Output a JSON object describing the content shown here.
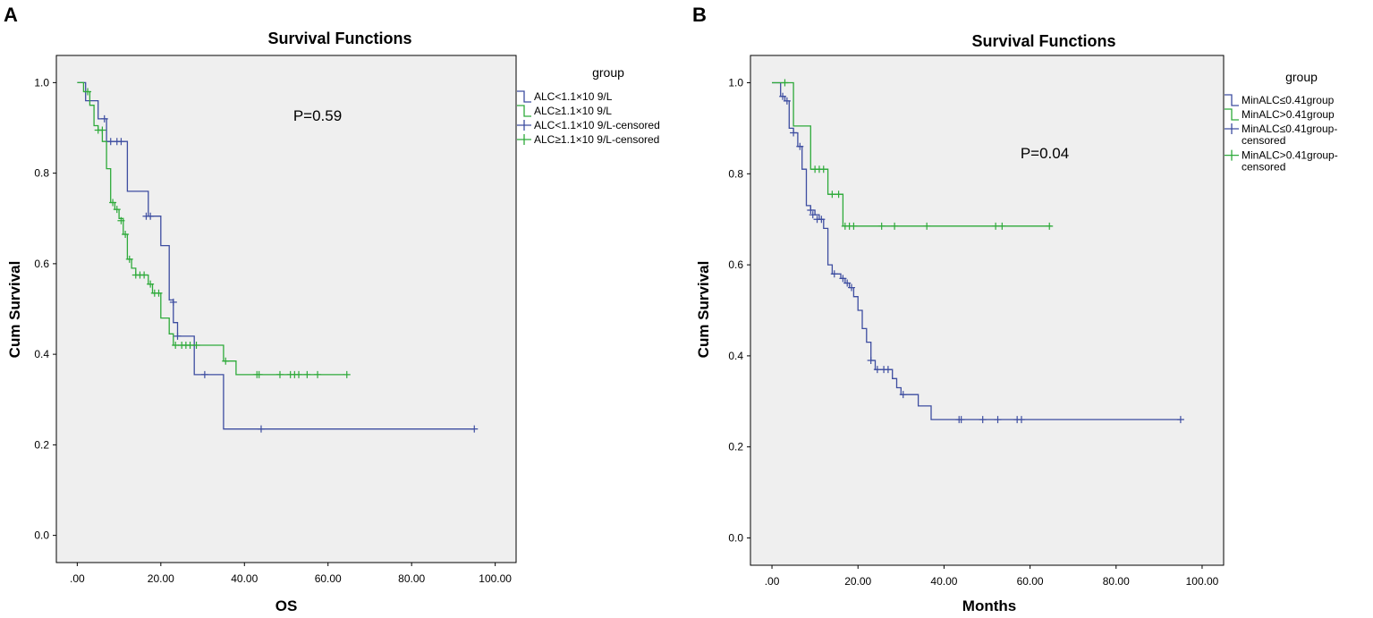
{
  "chart_data": [
    {
      "type": "line",
      "panel_label": "A",
      "title": "Survival Functions",
      "xlabel": "OS",
      "ylabel": "Cum Survival",
      "xlim": [
        -5,
        105
      ],
      "ylim": [
        -0.06,
        1.06
      ],
      "x_ticks": [
        0,
        20,
        40,
        60,
        80,
        100
      ],
      "x_tick_labels": [
        ".00",
        "20.00",
        "40.00",
        "60.00",
        "80.00",
        "100.00"
      ],
      "y_ticks": [
        0,
        0.2,
        0.4,
        0.6,
        0.8,
        1.0
      ],
      "y_tick_labels": [
        "0.0",
        "0.2",
        "0.4",
        "0.6",
        "0.8",
        "1.0"
      ],
      "grid": false,
      "annotation": "P=0.59",
      "legend": {
        "title": "group",
        "placement": "outside-right",
        "entries": [
          {
            "label": "ALC<1.1×10 9/L",
            "color": "#3d4da0",
            "kind": "step"
          },
          {
            "label": "ALC≥1.1×10 9/L",
            "color": "#2eaa3a",
            "kind": "step"
          },
          {
            "label": "ALC<1.1×10 9/L-censored",
            "color": "#3d4da0",
            "kind": "censor"
          },
          {
            "label": "ALC≥1.1×10 9/L-censored",
            "color": "#2eaa3a",
            "kind": "censor"
          }
        ]
      },
      "series": [
        {
          "name": "ALC<1.1×10 9/L",
          "color": "#3d4da0",
          "steps": [
            [
              0,
              1.0
            ],
            [
              2,
              0.96
            ],
            [
              5,
              0.92
            ],
            [
              7,
              0.87
            ],
            [
              12,
              0.76
            ],
            [
              17,
              0.705
            ],
            [
              20,
              0.64
            ],
            [
              22,
              0.52
            ],
            [
              23,
              0.47
            ],
            [
              24,
              0.44
            ],
            [
              28,
              0.355
            ],
            [
              35,
              0.235
            ],
            [
              95,
              0.235
            ]
          ],
          "censored": [
            [
              6.5,
              0.92
            ],
            [
              8,
              0.87
            ],
            [
              9.5,
              0.87
            ],
            [
              10.5,
              0.87
            ],
            [
              16.5,
              0.705
            ],
            [
              17.5,
              0.705
            ],
            [
              23,
              0.515
            ],
            [
              24,
              0.44
            ],
            [
              30.5,
              0.355
            ],
            [
              44,
              0.235
            ],
            [
              95,
              0.235
            ]
          ]
        },
        {
          "name": "ALC≥1.1×10 9/L",
          "color": "#2eaa3a",
          "steps": [
            [
              0,
              1.0
            ],
            [
              1.5,
              0.98
            ],
            [
              3,
              0.95
            ],
            [
              4,
              0.905
            ],
            [
              5,
              0.895
            ],
            [
              6,
              0.87
            ],
            [
              7,
              0.81
            ],
            [
              8,
              0.735
            ],
            [
              9,
              0.72
            ],
            [
              10,
              0.7
            ],
            [
              11,
              0.665
            ],
            [
              12,
              0.61
            ],
            [
              13,
              0.59
            ],
            [
              14,
              0.575
            ],
            [
              17,
              0.555
            ],
            [
              18,
              0.535
            ],
            [
              20,
              0.48
            ],
            [
              22,
              0.445
            ],
            [
              23,
              0.42
            ],
            [
              35,
              0.385
            ],
            [
              38,
              0.355
            ],
            [
              64,
              0.355
            ]
          ],
          "censored": [
            [
              2.5,
              0.98
            ],
            [
              5,
              0.895
            ],
            [
              6,
              0.895
            ],
            [
              8.5,
              0.735
            ],
            [
              9.5,
              0.72
            ],
            [
              10.5,
              0.695
            ],
            [
              11.5,
              0.665
            ],
            [
              12.5,
              0.61
            ],
            [
              14,
              0.575
            ],
            [
              15,
              0.575
            ],
            [
              16,
              0.575
            ],
            [
              17.5,
              0.555
            ],
            [
              18.5,
              0.535
            ],
            [
              19.5,
              0.535
            ],
            [
              23.5,
              0.42
            ],
            [
              25,
              0.42
            ],
            [
              26,
              0.42
            ],
            [
              27,
              0.42
            ],
            [
              28.5,
              0.42
            ],
            [
              35.5,
              0.385
            ],
            [
              43,
              0.355
            ],
            [
              43.5,
              0.355
            ],
            [
              48.5,
              0.355
            ],
            [
              51,
              0.355
            ],
            [
              52,
              0.355
            ],
            [
              53,
              0.355
            ],
            [
              55,
              0.355
            ],
            [
              57.5,
              0.355
            ],
            [
              64.5,
              0.355
            ]
          ]
        }
      ]
    },
    {
      "type": "line",
      "panel_label": "B",
      "title": "Survival Functions",
      "xlabel": "Months",
      "ylabel": "Cum Survival",
      "xlim": [
        -5,
        105
      ],
      "ylim": [
        -0.06,
        1.06
      ],
      "x_ticks": [
        0,
        20,
        40,
        60,
        80,
        100
      ],
      "x_tick_labels": [
        ".00",
        "20.00",
        "40.00",
        "60.00",
        "80.00",
        "100.00"
      ],
      "y_ticks": [
        0,
        0.2,
        0.4,
        0.6,
        0.8,
        1.0
      ],
      "y_tick_labels": [
        "0.0",
        "0.2",
        "0.4",
        "0.6",
        "0.8",
        "1.0"
      ],
      "grid": false,
      "annotation": "P=0.04",
      "legend": {
        "title": "group",
        "placement": "outside-right",
        "entries": [
          {
            "label": "MinALC≤0.41group",
            "color": "#3d4da0",
            "kind": "step"
          },
          {
            "label": "MinALC>0.41group",
            "color": "#2eaa3a",
            "kind": "step"
          },
          {
            "label": "MinALC≤0.41group-censored",
            "color": "#3d4da0",
            "kind": "censor"
          },
          {
            "label": "MinALC>0.41group-censored",
            "color": "#2eaa3a",
            "kind": "censor"
          }
        ]
      },
      "series": [
        {
          "name": "MinALC≤0.41group",
          "color": "#3d4da0",
          "steps": [
            [
              0,
              1.0
            ],
            [
              2,
              0.97
            ],
            [
              3,
              0.96
            ],
            [
              4,
              0.9
            ],
            [
              5,
              0.89
            ],
            [
              6,
              0.86
            ],
            [
              7,
              0.81
            ],
            [
              8,
              0.73
            ],
            [
              9,
              0.72
            ],
            [
              10,
              0.71
            ],
            [
              11,
              0.7
            ],
            [
              12,
              0.68
            ],
            [
              13,
              0.6
            ],
            [
              14,
              0.58
            ],
            [
              16,
              0.57
            ],
            [
              17,
              0.56
            ],
            [
              18,
              0.55
            ],
            [
              19,
              0.53
            ],
            [
              20,
              0.5
            ],
            [
              21,
              0.46
            ],
            [
              22,
              0.43
            ],
            [
              23,
              0.39
            ],
            [
              24,
              0.37
            ],
            [
              28,
              0.35
            ],
            [
              29,
              0.33
            ],
            [
              30,
              0.315
            ],
            [
              34,
              0.29
            ],
            [
              37,
              0.26
            ],
            [
              95,
              0.26
            ]
          ],
          "censored": [
            [
              2.5,
              0.97
            ],
            [
              3.5,
              0.96
            ],
            [
              5,
              0.89
            ],
            [
              6.5,
              0.86
            ],
            [
              9,
              0.72
            ],
            [
              9.5,
              0.71
            ],
            [
              10.5,
              0.7
            ],
            [
              11.5,
              0.7
            ],
            [
              14.5,
              0.58
            ],
            [
              16.5,
              0.57
            ],
            [
              17.5,
              0.56
            ],
            [
              18.5,
              0.55
            ],
            [
              23,
              0.39
            ],
            [
              24.5,
              0.37
            ],
            [
              26,
              0.37
            ],
            [
              27,
              0.37
            ],
            [
              30.5,
              0.315
            ],
            [
              43.5,
              0.26
            ],
            [
              44,
              0.26
            ],
            [
              49,
              0.26
            ],
            [
              52.5,
              0.26
            ],
            [
              57,
              0.26
            ],
            [
              58,
              0.26
            ],
            [
              95,
              0.26
            ]
          ]
        },
        {
          "name": "MinALC>0.41group",
          "color": "#2eaa3a",
          "steps": [
            [
              0,
              1.0
            ],
            [
              5,
              0.905
            ],
            [
              9,
              0.81
            ],
            [
              13,
              0.755
            ],
            [
              16.5,
              0.685
            ],
            [
              65,
              0.685
            ]
          ],
          "censored": [
            [
              3,
              1.0
            ],
            [
              10,
              0.81
            ],
            [
              11,
              0.81
            ],
            [
              12,
              0.81
            ],
            [
              14,
              0.755
            ],
            [
              15.5,
              0.755
            ],
            [
              17,
              0.685
            ],
            [
              18,
              0.685
            ],
            [
              19,
              0.685
            ],
            [
              25.5,
              0.685
            ],
            [
              28.5,
              0.685
            ],
            [
              36,
              0.685
            ],
            [
              52,
              0.685
            ],
            [
              53.5,
              0.685
            ],
            [
              64.5,
              0.685
            ]
          ]
        }
      ]
    }
  ]
}
